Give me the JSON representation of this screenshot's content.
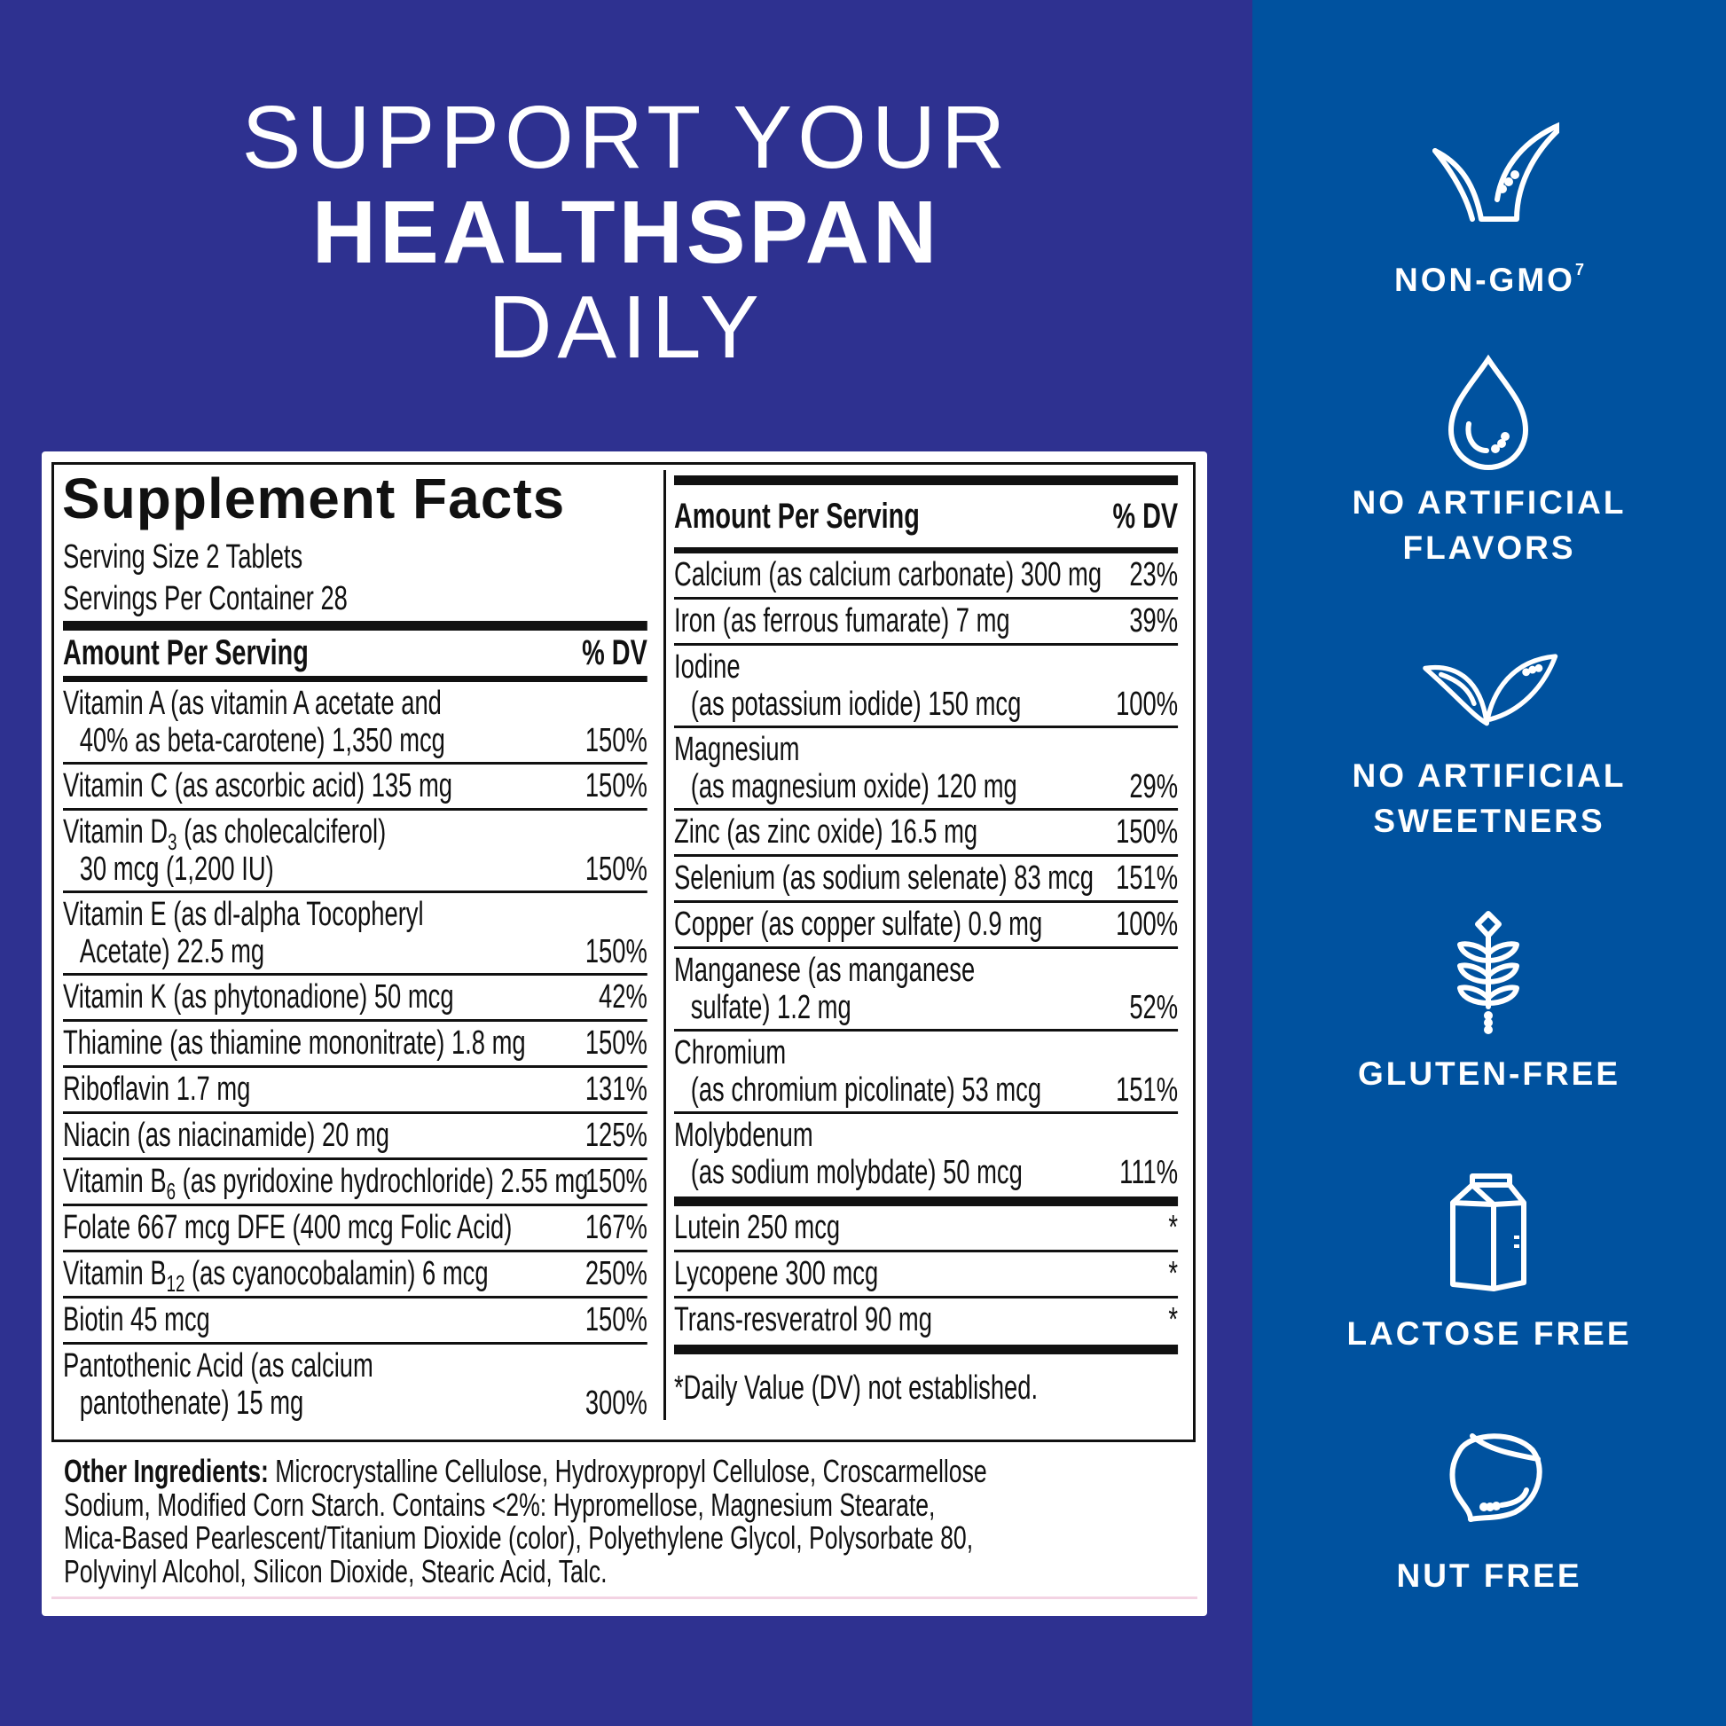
{
  "colors": {
    "left_background": "#2e3190",
    "right_background": "#00529f",
    "card": "#ffffff",
    "text": "#111111"
  },
  "headline": {
    "line1": "SUPPORT YOUR",
    "line2": "HEALTHSPAN",
    "line3": "DAILY"
  },
  "facts": {
    "title": "Supplement Facts",
    "serving_size": "Serving Size 2 Tablets",
    "servings_per_container": "Servings Per Container 28",
    "amount_header": "Amount Per Serving",
    "dv_header": "% DV",
    "left_rows": [
      {
        "pre": "Vitamin A (as vitamin A acetate and",
        "line2": "40% as beta-carotene) 1,350 mcg",
        "dv": "150%"
      },
      {
        "pre": "Vitamin C (as ascorbic acid) 135 mg",
        "dv": "150%"
      },
      {
        "pre": "Vitamin D",
        "sub": "3",
        "post": " (as cholecalciferol)",
        "line2": "30 mcg (1,200 IU)",
        "dv": "150%"
      },
      {
        "pre": "Vitamin E (as dl-alpha Tocopheryl",
        "line2": "Acetate) 22.5 mg",
        "dv": "150%"
      },
      {
        "pre": "Vitamin K (as phytonadione) 50 mcg",
        "dv": "42%"
      },
      {
        "pre": "Thiamine (as thiamine mononitrate) 1.8 mg",
        "dv": "150%"
      },
      {
        "pre": "Riboflavin 1.7 mg",
        "dv": "131%"
      },
      {
        "pre": "Niacin (as niacinamide) 20 mg",
        "dv": "125%"
      },
      {
        "pre": "Vitamin B",
        "sub": "6",
        "post": " (as pyridoxine hydrochloride) 2.55 mg",
        "dv": "150%"
      },
      {
        "pre": "Folate 667 mcg DFE (400 mcg Folic Acid)",
        "dv": "167%"
      },
      {
        "pre": "Vitamin B",
        "sub": "12",
        "post": " (as cyanocobalamin) 6 mcg",
        "dv": "250%"
      },
      {
        "pre": "Biotin 45 mcg",
        "dv": "150%"
      },
      {
        "pre": "Pantothenic Acid (as calcium",
        "line2": "pantothenate) 15 mg",
        "dv": "300%"
      }
    ],
    "right_rows": [
      {
        "pre": "Calcium (as calcium carbonate) 300 mg",
        "dv": "23%"
      },
      {
        "pre": "Iron (as ferrous fumarate) 7 mg",
        "dv": "39%"
      },
      {
        "pre": "Iodine",
        "line2": "(as potassium iodide) 150 mcg",
        "dv": "100%"
      },
      {
        "pre": "Magnesium",
        "line2": "(as magnesium oxide) 120 mg",
        "dv": "29%"
      },
      {
        "pre": "Zinc (as zinc oxide) 16.5 mg",
        "dv": "150%"
      },
      {
        "pre": "Selenium (as sodium selenate) 83 mcg",
        "dv": "151%"
      },
      {
        "pre": "Copper (as copper sulfate) 0.9 mg",
        "dv": "100%"
      },
      {
        "pre": "Manganese (as manganese",
        "line2": "sulfate) 1.2 mg",
        "dv": "52%"
      },
      {
        "pre": "Chromium",
        "line2": "(as chromium picolinate) 53 mcg",
        "dv": "151%"
      },
      {
        "pre": "Molybdenum",
        "line2": "(as sodium molybdate) 50 mcg",
        "dv": "111%"
      }
    ],
    "other_rows": [
      {
        "pre": "Lutein 250 mcg",
        "dv": "*"
      },
      {
        "pre": "Lycopene 300 mcg",
        "dv": "*"
      },
      {
        "pre": "Trans-resveratrol 90 mg",
        "dv": "*"
      }
    ],
    "footnote": "*Daily Value (DV) not established."
  },
  "other_ingredients": {
    "label": "Other Ingredients:",
    "lines": [
      " Microcrystalline Cellulose, Hydroxypropyl Cellulose, Croscarmellose",
      "Sodium, Modified Corn Starch. Contains <2%: Hypromellose, Magnesium Stearate,",
      "Mica-Based Pearlescent/Titanium Dioxide (color), Polyethylene Glycol, Polysorbate 80,",
      "Polyvinyl Alcohol, Silicon Dioxide, Stearic Acid, Talc."
    ]
  },
  "badges": [
    {
      "icon": "checkmark-leaf-icon",
      "lines": [
        "NON-GMO"
      ],
      "sup": "7"
    },
    {
      "icon": "water-drop-icon",
      "lines": [
        "NO ARTIFICIAL",
        "FLAVORS"
      ]
    },
    {
      "icon": "leaves-icon",
      "lines": [
        "NO ARTIFICIAL",
        "SWEETNERS"
      ]
    },
    {
      "icon": "wheat-icon",
      "lines": [
        "GLUTEN-FREE"
      ]
    },
    {
      "icon": "milk-carton-icon",
      "lines": [
        "LACTOSE FREE"
      ]
    },
    {
      "icon": "nut-icon",
      "lines": [
        "NUT FREE"
      ]
    }
  ]
}
